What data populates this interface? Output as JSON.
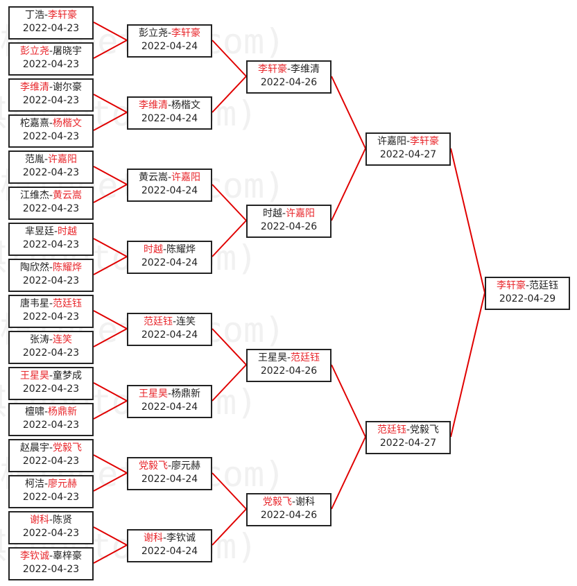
{
  "watermark": "弘通围棋(hoetom.com)",
  "colors": {
    "winner": "#e8262b",
    "line": "#e00000",
    "text": "#222222"
  },
  "rounds": [
    [
      {
        "p1": "丁浩",
        "p2": "李轩豪",
        "winner": 2,
        "date": "2022-04-23"
      },
      {
        "p1": "彭立尧",
        "p2": "屠晓宇",
        "winner": 1,
        "date": "2022-04-23"
      },
      {
        "p1": "李维清",
        "p2": "谢尔豪",
        "winner": 1,
        "date": "2022-04-23"
      },
      {
        "p1": "柁嘉熹",
        "p2": "杨楷文",
        "winner": 2,
        "date": "2022-04-23"
      },
      {
        "p1": "范胤",
        "p2": "许嘉阳",
        "winner": 2,
        "date": "2022-04-23"
      },
      {
        "p1": "江维杰",
        "p2": "黄云嵩",
        "winner": 2,
        "date": "2022-04-23"
      },
      {
        "p1": "芈昱廷",
        "p2": "时越",
        "winner": 2,
        "date": "2022-04-23"
      },
      {
        "p1": "陶欣然",
        "p2": "陈耀烨",
        "winner": 2,
        "date": "2022-04-23"
      },
      {
        "p1": "唐韦星",
        "p2": "范廷钰",
        "winner": 2,
        "date": "2022-04-23"
      },
      {
        "p1": "张涛",
        "p2": "连笑",
        "winner": 2,
        "date": "2022-04-23"
      },
      {
        "p1": "王星昊",
        "p2": "童梦成",
        "winner": 1,
        "date": "2022-04-23"
      },
      {
        "p1": "檀啸",
        "p2": "杨鼎新",
        "winner": 2,
        "date": "2022-04-23"
      },
      {
        "p1": "赵晨宇",
        "p2": "党毅飞",
        "winner": 2,
        "date": "2022-04-23"
      },
      {
        "p1": "柯洁",
        "p2": "廖元赫",
        "winner": 2,
        "date": "2022-04-23"
      },
      {
        "p1": "谢科",
        "p2": "陈贤",
        "winner": 1,
        "date": "2022-04-23"
      },
      {
        "p1": "李钦诚",
        "p2": "辜梓豪",
        "winner": 1,
        "date": "2022-04-23"
      }
    ],
    [
      {
        "p1": "彭立尧",
        "p2": "李轩豪",
        "winner": 2,
        "date": "2022-04-24"
      },
      {
        "p1": "李维清",
        "p2": "杨楷文",
        "winner": 1,
        "date": "2022-04-24"
      },
      {
        "p1": "黄云嵩",
        "p2": "许嘉阳",
        "winner": 2,
        "date": "2022-04-24"
      },
      {
        "p1": "时越",
        "p2": "陈耀烨",
        "winner": 1,
        "date": "2022-04-24"
      },
      {
        "p1": "范廷钰",
        "p2": "连笑",
        "winner": 1,
        "date": "2022-04-24"
      },
      {
        "p1": "王星昊",
        "p2": "杨鼎新",
        "winner": 1,
        "date": "2022-04-24"
      },
      {
        "p1": "党毅飞",
        "p2": "廖元赫",
        "winner": 1,
        "date": "2022-04-24"
      },
      {
        "p1": "谢科",
        "p2": "李钦诚",
        "winner": 1,
        "date": "2022-04-24"
      }
    ],
    [
      {
        "p1": "李轩豪",
        "p2": "李维清",
        "winner": 1,
        "date": "2022-04-26"
      },
      {
        "p1": "时越",
        "p2": "许嘉阳",
        "winner": 2,
        "date": "2022-04-26"
      },
      {
        "p1": "王星昊",
        "p2": "范廷钰",
        "winner": 2,
        "date": "2022-04-26"
      },
      {
        "p1": "党毅飞",
        "p2": "谢科",
        "winner": 1,
        "date": "2022-04-26"
      }
    ],
    [
      {
        "p1": "许嘉阳",
        "p2": "李轩豪",
        "winner": 2,
        "date": "2022-04-27"
      },
      {
        "p1": "范廷钰",
        "p2": "党毅飞",
        "winner": 1,
        "date": "2022-04-27"
      }
    ],
    [
      {
        "p1": "李轩豪",
        "p2": "范廷钰",
        "winner": 1,
        "date": "2022-04-29"
      }
    ]
  ]
}
